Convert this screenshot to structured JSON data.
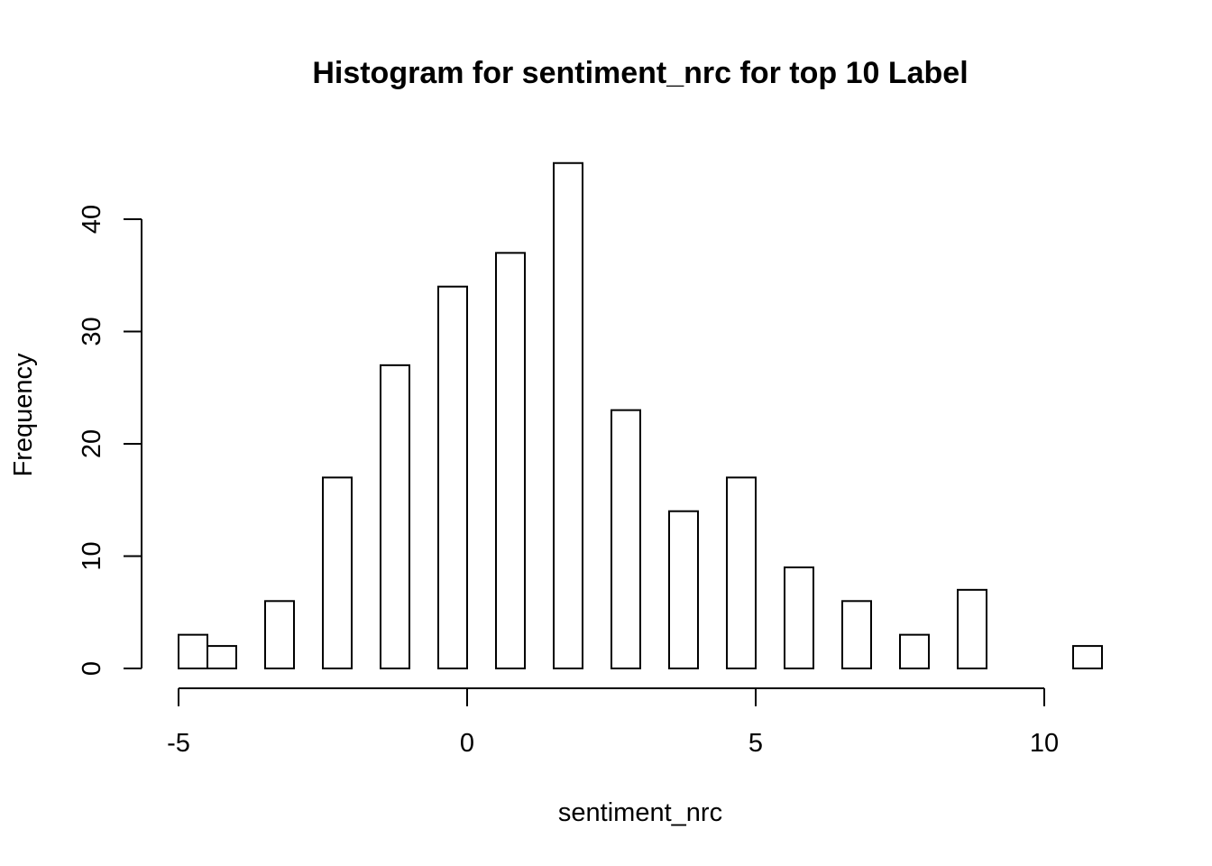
{
  "chart_data": {
    "type": "bar",
    "title": "Histogram for sentiment_nrc for top 10 Label",
    "xlabel": "sentiment_nrc",
    "ylabel": "Frequency",
    "xlim": [
      -5,
      11
    ],
    "ylim": [
      0,
      45
    ],
    "x_ticks": [
      -5,
      0,
      5,
      10
    ],
    "y_ticks": [
      0,
      10,
      20,
      30,
      40
    ],
    "bin_width": 0.5,
    "bins": [
      {
        "from": -5.0,
        "to": -4.5,
        "count": 3
      },
      {
        "from": -4.5,
        "to": -4.0,
        "count": 2
      },
      {
        "from": -3.5,
        "to": -3.0,
        "count": 6
      },
      {
        "from": -2.5,
        "to": -2.0,
        "count": 17
      },
      {
        "from": -1.5,
        "to": -1.0,
        "count": 27
      },
      {
        "from": -0.5,
        "to": 0.0,
        "count": 34
      },
      {
        "from": 0.5,
        "to": 1.0,
        "count": 37
      },
      {
        "from": 1.5,
        "to": 2.0,
        "count": 45
      },
      {
        "from": 2.5,
        "to": 3.0,
        "count": 23
      },
      {
        "from": 3.5,
        "to": 4.0,
        "count": 14
      },
      {
        "from": 4.5,
        "to": 5.0,
        "count": 17
      },
      {
        "from": 5.5,
        "to": 6.0,
        "count": 9
      },
      {
        "from": 6.5,
        "to": 7.0,
        "count": 6
      },
      {
        "from": 7.5,
        "to": 8.0,
        "count": 3
      },
      {
        "from": 8.5,
        "to": 9.0,
        "count": 7
      },
      {
        "from": 10.5,
        "to": 11.0,
        "count": 2
      }
    ],
    "grid": false,
    "legend": "none"
  }
}
